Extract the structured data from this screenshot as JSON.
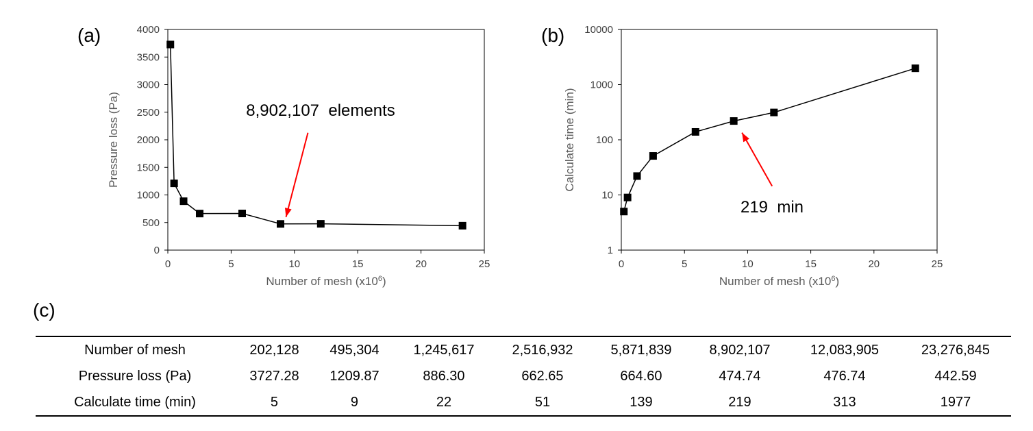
{
  "panels": {
    "a": "(a)",
    "b": "(b)",
    "c": "(c)"
  },
  "chart_data": [
    {
      "type": "line",
      "panel": "(a)",
      "xlabel": "Number of mesh (x10⁶)",
      "ylabel": "Pressure loss (Pa)",
      "xlim": [
        0,
        25
      ],
      "ylim": [
        0,
        4000
      ],
      "xticks": [
        "0",
        "5",
        "10",
        "15",
        "20",
        "25"
      ],
      "yticks": [
        "0",
        "500",
        "1000",
        "1500",
        "2000",
        "2500",
        "3000",
        "3500",
        "4000"
      ],
      "x": [
        0.202128,
        0.495304,
        1.245617,
        2.516932,
        5.871839,
        8.902107,
        12.083905,
        23.276845
      ],
      "y": [
        3727.28,
        1209.87,
        886.3,
        662.65,
        664.6,
        474.74,
        476.74,
        442.59
      ],
      "marker": "square",
      "color": "#000000",
      "annotation": {
        "text": "8,902,107  elements",
        "x": 8.902107,
        "y": 474.74,
        "arrow_color": "#ff0000"
      }
    },
    {
      "type": "line",
      "panel": "(b)",
      "xlabel": "Number of mesh (x10⁶)",
      "ylabel": "Calculate time (min)",
      "xlim": [
        0,
        25
      ],
      "ylim": [
        1,
        10000
      ],
      "yscale": "log",
      "xticks": [
        "0",
        "5",
        "10",
        "15",
        "20",
        "25"
      ],
      "yticks": [
        "1",
        "10",
        "100",
        "1000",
        "10000"
      ],
      "x": [
        0.202128,
        0.495304,
        1.245617,
        2.516932,
        5.871839,
        8.902107,
        12.083905,
        23.276845
      ],
      "y": [
        5,
        9,
        22,
        51,
        139,
        219,
        313,
        1977
      ],
      "marker": "square",
      "color": "#000000",
      "annotation": {
        "text": "219  min",
        "x": 8.902107,
        "y": 219,
        "arrow_color": "#ff0000"
      }
    }
  ],
  "table": {
    "rows": [
      {
        "label": "Number of mesh",
        "values": [
          "202,128",
          "495,304",
          "1,245,617",
          "2,516,932",
          "5,871,839",
          "8,902,107",
          "12,083,905",
          "23,276,845"
        ]
      },
      {
        "label": "Pressure loss (Pa)",
        "values": [
          "3727.28",
          "1209.87",
          "886.30",
          "662.65",
          "664.60",
          "474.74",
          "476.74",
          "442.59"
        ]
      },
      {
        "label": "Calculate time (min)",
        "values": [
          "5",
          "9",
          "22",
          "51",
          "139",
          "219",
          "313",
          "1977"
        ]
      }
    ]
  }
}
